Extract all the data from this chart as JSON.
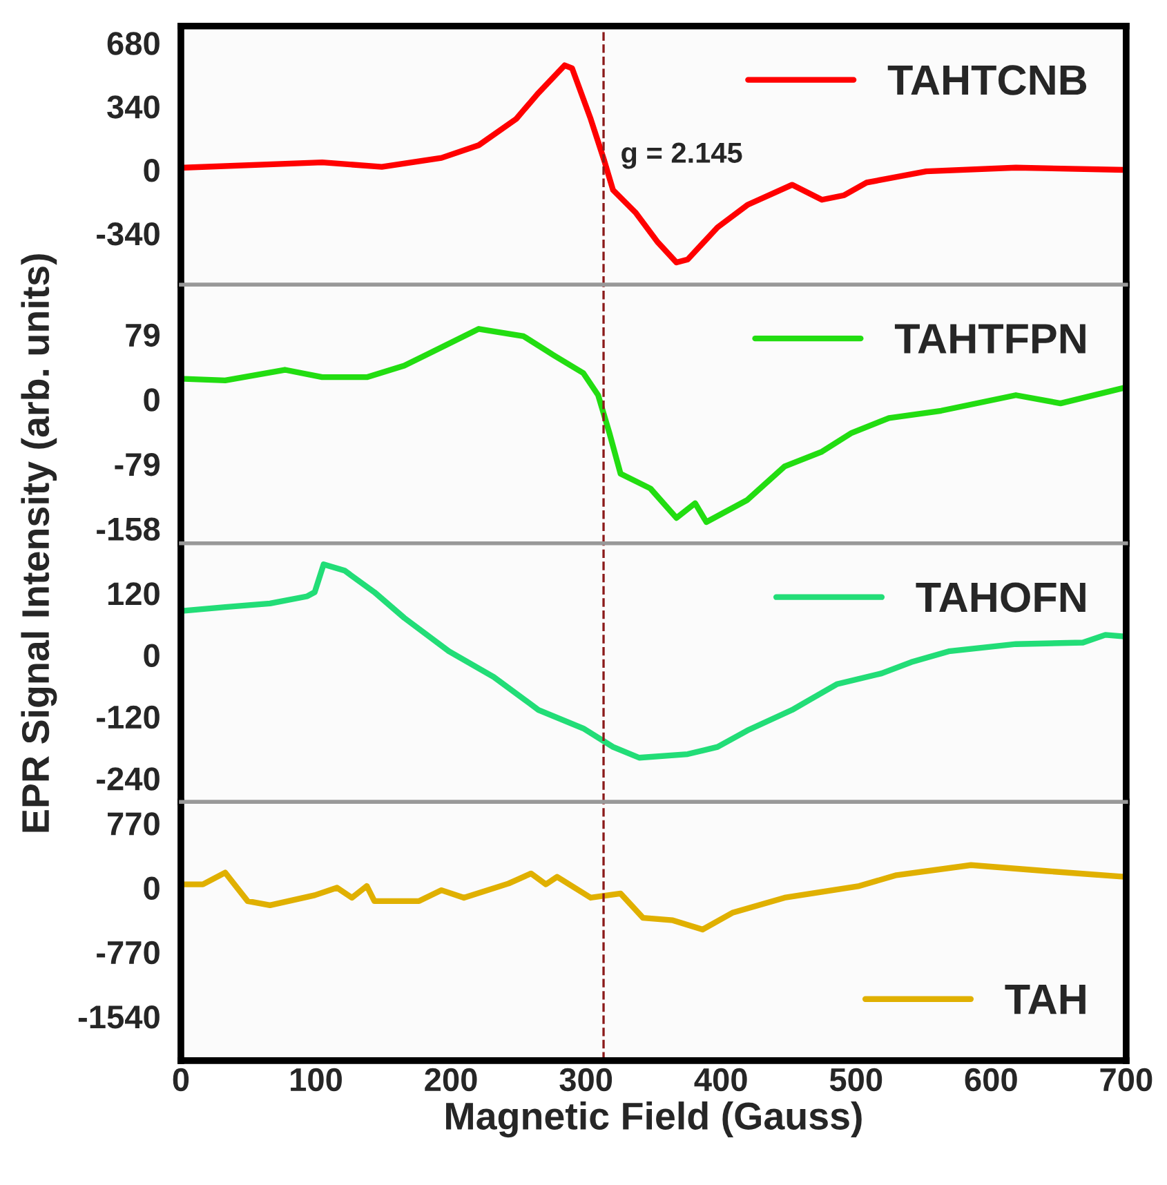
{
  "chart_data": [
    {
      "type": "line",
      "ylabel": "EPR Signal Intensity (arb. units)",
      "xlim": [
        0,
        700
      ],
      "xticks": [
        0,
        100,
        200,
        300,
        400,
        500,
        600,
        700
      ],
      "ylim": [
        -615,
        770
      ],
      "yticks": [
        -340,
        0,
        340,
        680
      ],
      "tick_labels": "y",
      "legend": "top right",
      "grid": false,
      "line_style": "solid",
      "annotations": [
        "g = 2.145"
      ],
      "ref_lines": [
        {
          "axis": "x",
          "value": 313,
          "color": "#8b1a1a",
          "line_style": "dashed"
        }
      ],
      "series": [
        {
          "name": "TAHTCNB",
          "color": "#ff0000",
          "x": [
            2.5,
            104.6,
            148.8,
            193,
            220.6,
            248.2,
            264.8,
            284.2,
            289.7,
            303.5,
            313.4,
            320,
            336.6,
            353.2,
            367,
            375.3,
            397.4,
            419.5,
            452.6,
            474.7,
            491.2,
            507.8,
            552,
            618.3,
            698.4
          ],
          "values": [
            12,
            40,
            16,
            64,
            132,
            272,
            412,
            560,
            544,
            272,
            52,
            -108,
            -228,
            -388,
            -496,
            -480,
            -308,
            -188,
            -80,
            -160,
            -136,
            -68,
            -8,
            12,
            0
          ]
        }
      ]
    },
    {
      "type": "line",
      "xlim": [
        0,
        700
      ],
      "xticks": [
        0,
        100,
        200,
        300,
        400,
        500,
        600,
        700
      ],
      "ylim": [
        -176,
        140
      ],
      "yticks": [
        -158,
        -79,
        0,
        79
      ],
      "tick_labels": "y",
      "legend": "top right",
      "grid": false,
      "line_style": "solid",
      "ref_lines": [
        {
          "axis": "x",
          "value": 313,
          "color": "#8b1a1a",
          "line_style": "dashed"
        }
      ],
      "series": [
        {
          "name": "TAHTFPN",
          "color": "#22dd11",
          "x": [
            2.5,
            32.8,
            77,
            104.6,
            137.7,
            165.4,
            187.5,
            220.6,
            253.8,
            275.9,
            298,
            309,
            317.3,
            325.6,
            347.7,
            367,
            380.8,
            389.1,
            419.5,
            447.1,
            474.7,
            496.8,
            524.4,
            563,
            618.3,
            651.4,
            698.4
          ],
          "values": [
            25,
            23,
            36,
            27,
            27,
            41,
            59,
            86,
            77,
            54,
            32,
            5,
            -41,
            -91,
            -109,
            -145,
            -127,
            -150,
            -123,
            -82,
            -64,
            -41,
            -23,
            -14,
            5,
            -5,
            14
          ]
        }
      ]
    },
    {
      "type": "line",
      "xlim": [
        0,
        700
      ],
      "xticks": [
        0,
        100,
        200,
        300,
        400,
        500,
        600,
        700
      ],
      "ylim": [
        -286,
        217
      ],
      "yticks": [
        -240,
        -120,
        0,
        120
      ],
      "tick_labels": "y",
      "legend": "top right",
      "grid": false,
      "line_style": "solid",
      "ref_lines": [
        {
          "axis": "x",
          "value": 313,
          "color": "#8b1a1a",
          "line_style": "dashed"
        }
      ],
      "series": [
        {
          "name": "TAHOFN",
          "color": "#22dd77",
          "x": [
            2.5,
            32.8,
            66,
            93.6,
            99.1,
            105.7,
            121.2,
            143.3,
            165.4,
            198.5,
            231.7,
            264.8,
            298,
            320,
            339.4,
            375.3,
            397.4,
            419.5,
            452.6,
            485.7,
            518.9,
            540.9,
            568.6,
            618.3,
            668,
            684.6,
            698.4
          ],
          "values": [
            86,
            93,
            100,
            114,
            122,
            176,
            164,
            122,
            72,
            7,
            -43,
            -107,
            -143,
            -179,
            -200,
            -193,
            -179,
            -147,
            -107,
            -57,
            -36,
            -14,
            7,
            21,
            24,
            39,
            36
          ]
        }
      ]
    },
    {
      "type": "line",
      "xlabel": "Magnetic Field (Gauss)",
      "xlim": [
        0,
        700
      ],
      "xticks": [
        0,
        100,
        200,
        300,
        400,
        500,
        600,
        700
      ],
      "ylim": [
        -2067,
        1025
      ],
      "yticks": [
        -1540,
        -770,
        0,
        770
      ],
      "legend": "bottom right",
      "grid": false,
      "line_style": "solid",
      "ref_lines": [
        {
          "axis": "x",
          "value": 313,
          "color": "#8b1a1a",
          "line_style": "dashed"
        }
      ],
      "series": [
        {
          "name": "TAH",
          "color": "#e0b000",
          "x": [
            2.5,
            16.3,
            32.8,
            49.4,
            66,
            99.1,
            115.6,
            126.7,
            137.7,
            143.3,
            176.4,
            193,
            209.6,
            242.7,
            259.3,
            270.3,
            278.6,
            303.5,
            325.6,
            342.2,
            364.3,
            386.3,
            408.4,
            447.1,
            502.3,
            529.9,
            585.1,
            640.4,
            698.4
          ],
          "values": [
            40,
            40,
            180,
            -160,
            -210,
            -90,
            0,
            -120,
            20,
            -160,
            -160,
            -30,
            -120,
            50,
            170,
            40,
            130,
            -120,
            -70,
            -360,
            -390,
            -500,
            -300,
            -120,
            20,
            150,
            270,
            200,
            130
          ]
        }
      ]
    }
  ]
}
